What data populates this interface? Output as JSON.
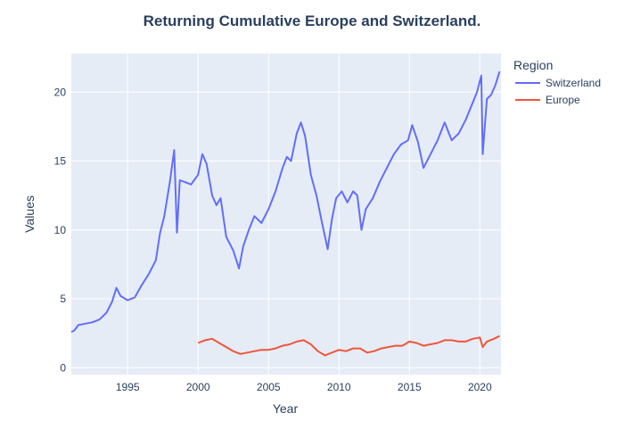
{
  "chart_data": {
    "type": "line",
    "title": "Returning Cumulative Europe and Switzerland.",
    "xlabel": "Year",
    "ylabel": "Values",
    "xlim": [
      1991.0,
      2021.5
    ],
    "ylim": [
      -0.5,
      22.8
    ],
    "x_ticks": [
      1995,
      2000,
      2005,
      2010,
      2015,
      2020
    ],
    "y_ticks": [
      0,
      5,
      10,
      15,
      20
    ],
    "grid": true,
    "plot_background": "#E5ECF6",
    "legend": {
      "title": "Region",
      "placement": "top-right, outside plot"
    },
    "series": [
      {
        "name": "Switzerland",
        "color": "#636EFA",
        "x": [
          1991.0,
          1991.2,
          1991.5,
          1992.0,
          1992.5,
          1993.0,
          1993.5,
          1993.9,
          1994.2,
          1994.5,
          1995.0,
          1995.5,
          1996.0,
          1996.5,
          1997.0,
          1997.3,
          1997.6,
          1998.0,
          1998.3,
          1998.5,
          1998.7,
          1999.0,
          1999.5,
          2000.0,
          2000.3,
          2000.6,
          2001.0,
          2001.3,
          2001.6,
          2002.0,
          2002.5,
          2002.9,
          2003.2,
          2003.6,
          2004.0,
          2004.5,
          2005.0,
          2005.5,
          2006.0,
          2006.3,
          2006.6,
          2007.0,
          2007.3,
          2007.6,
          2008.0,
          2008.4,
          2008.8,
          2009.2,
          2009.5,
          2009.8,
          2010.2,
          2010.6,
          2011.0,
          2011.3,
          2011.6,
          2011.9,
          2012.4,
          2012.9,
          2013.4,
          2013.9,
          2014.4,
          2014.9,
          2015.2,
          2015.6,
          2016.0,
          2016.5,
          2017.0,
          2017.5,
          2018.0,
          2018.5,
          2019.0,
          2019.4,
          2019.8,
          2020.1,
          2020.2,
          2020.5,
          2020.8,
          2021.1,
          2021.4
        ],
        "y": [
          2.6,
          2.7,
          3.1,
          3.2,
          3.3,
          3.5,
          4.0,
          4.8,
          5.8,
          5.2,
          4.9,
          5.1,
          6.0,
          6.8,
          7.8,
          9.8,
          11.0,
          13.5,
          15.8,
          9.8,
          13.6,
          13.5,
          13.3,
          14.0,
          15.5,
          14.8,
          12.5,
          11.8,
          12.3,
          9.5,
          8.5,
          7.2,
          8.8,
          10.0,
          11.0,
          10.5,
          11.5,
          12.8,
          14.5,
          15.3,
          15.0,
          17.0,
          17.8,
          16.8,
          14.0,
          12.5,
          10.5,
          8.6,
          10.8,
          12.3,
          12.8,
          12.0,
          12.8,
          12.5,
          10.0,
          11.5,
          12.3,
          13.5,
          14.5,
          15.5,
          16.2,
          16.5,
          17.6,
          16.4,
          14.5,
          15.5,
          16.5,
          17.8,
          16.5,
          17.0,
          18.0,
          19.0,
          20.0,
          21.2,
          15.5,
          19.5,
          19.8,
          20.5,
          21.5
        ]
      },
      {
        "name": "Europe",
        "color": "#EF553B",
        "x": [
          2000.0,
          2000.5,
          2001.0,
          2001.5,
          2002.0,
          2002.5,
          2003.0,
          2003.5,
          2004.0,
          2004.5,
          2005.0,
          2005.5,
          2006.0,
          2006.5,
          2007.0,
          2007.5,
          2008.0,
          2008.5,
          2009.0,
          2009.5,
          2010.0,
          2010.5,
          2011.0,
          2011.5,
          2012.0,
          2012.5,
          2013.0,
          2013.5,
          2014.0,
          2014.5,
          2015.0,
          2015.5,
          2016.0,
          2016.5,
          2017.0,
          2017.5,
          2018.0,
          2018.5,
          2019.0,
          2019.5,
          2020.0,
          2020.2,
          2020.5,
          2021.0,
          2021.4
        ],
        "y": [
          1.8,
          2.0,
          2.1,
          1.8,
          1.5,
          1.2,
          1.0,
          1.1,
          1.2,
          1.3,
          1.3,
          1.4,
          1.6,
          1.7,
          1.9,
          2.0,
          1.7,
          1.2,
          0.9,
          1.1,
          1.3,
          1.2,
          1.4,
          1.4,
          1.1,
          1.2,
          1.4,
          1.5,
          1.6,
          1.6,
          1.9,
          1.8,
          1.6,
          1.7,
          1.8,
          2.0,
          2.0,
          1.9,
          1.9,
          2.1,
          2.2,
          1.5,
          1.9,
          2.1,
          2.3
        ]
      }
    ]
  }
}
